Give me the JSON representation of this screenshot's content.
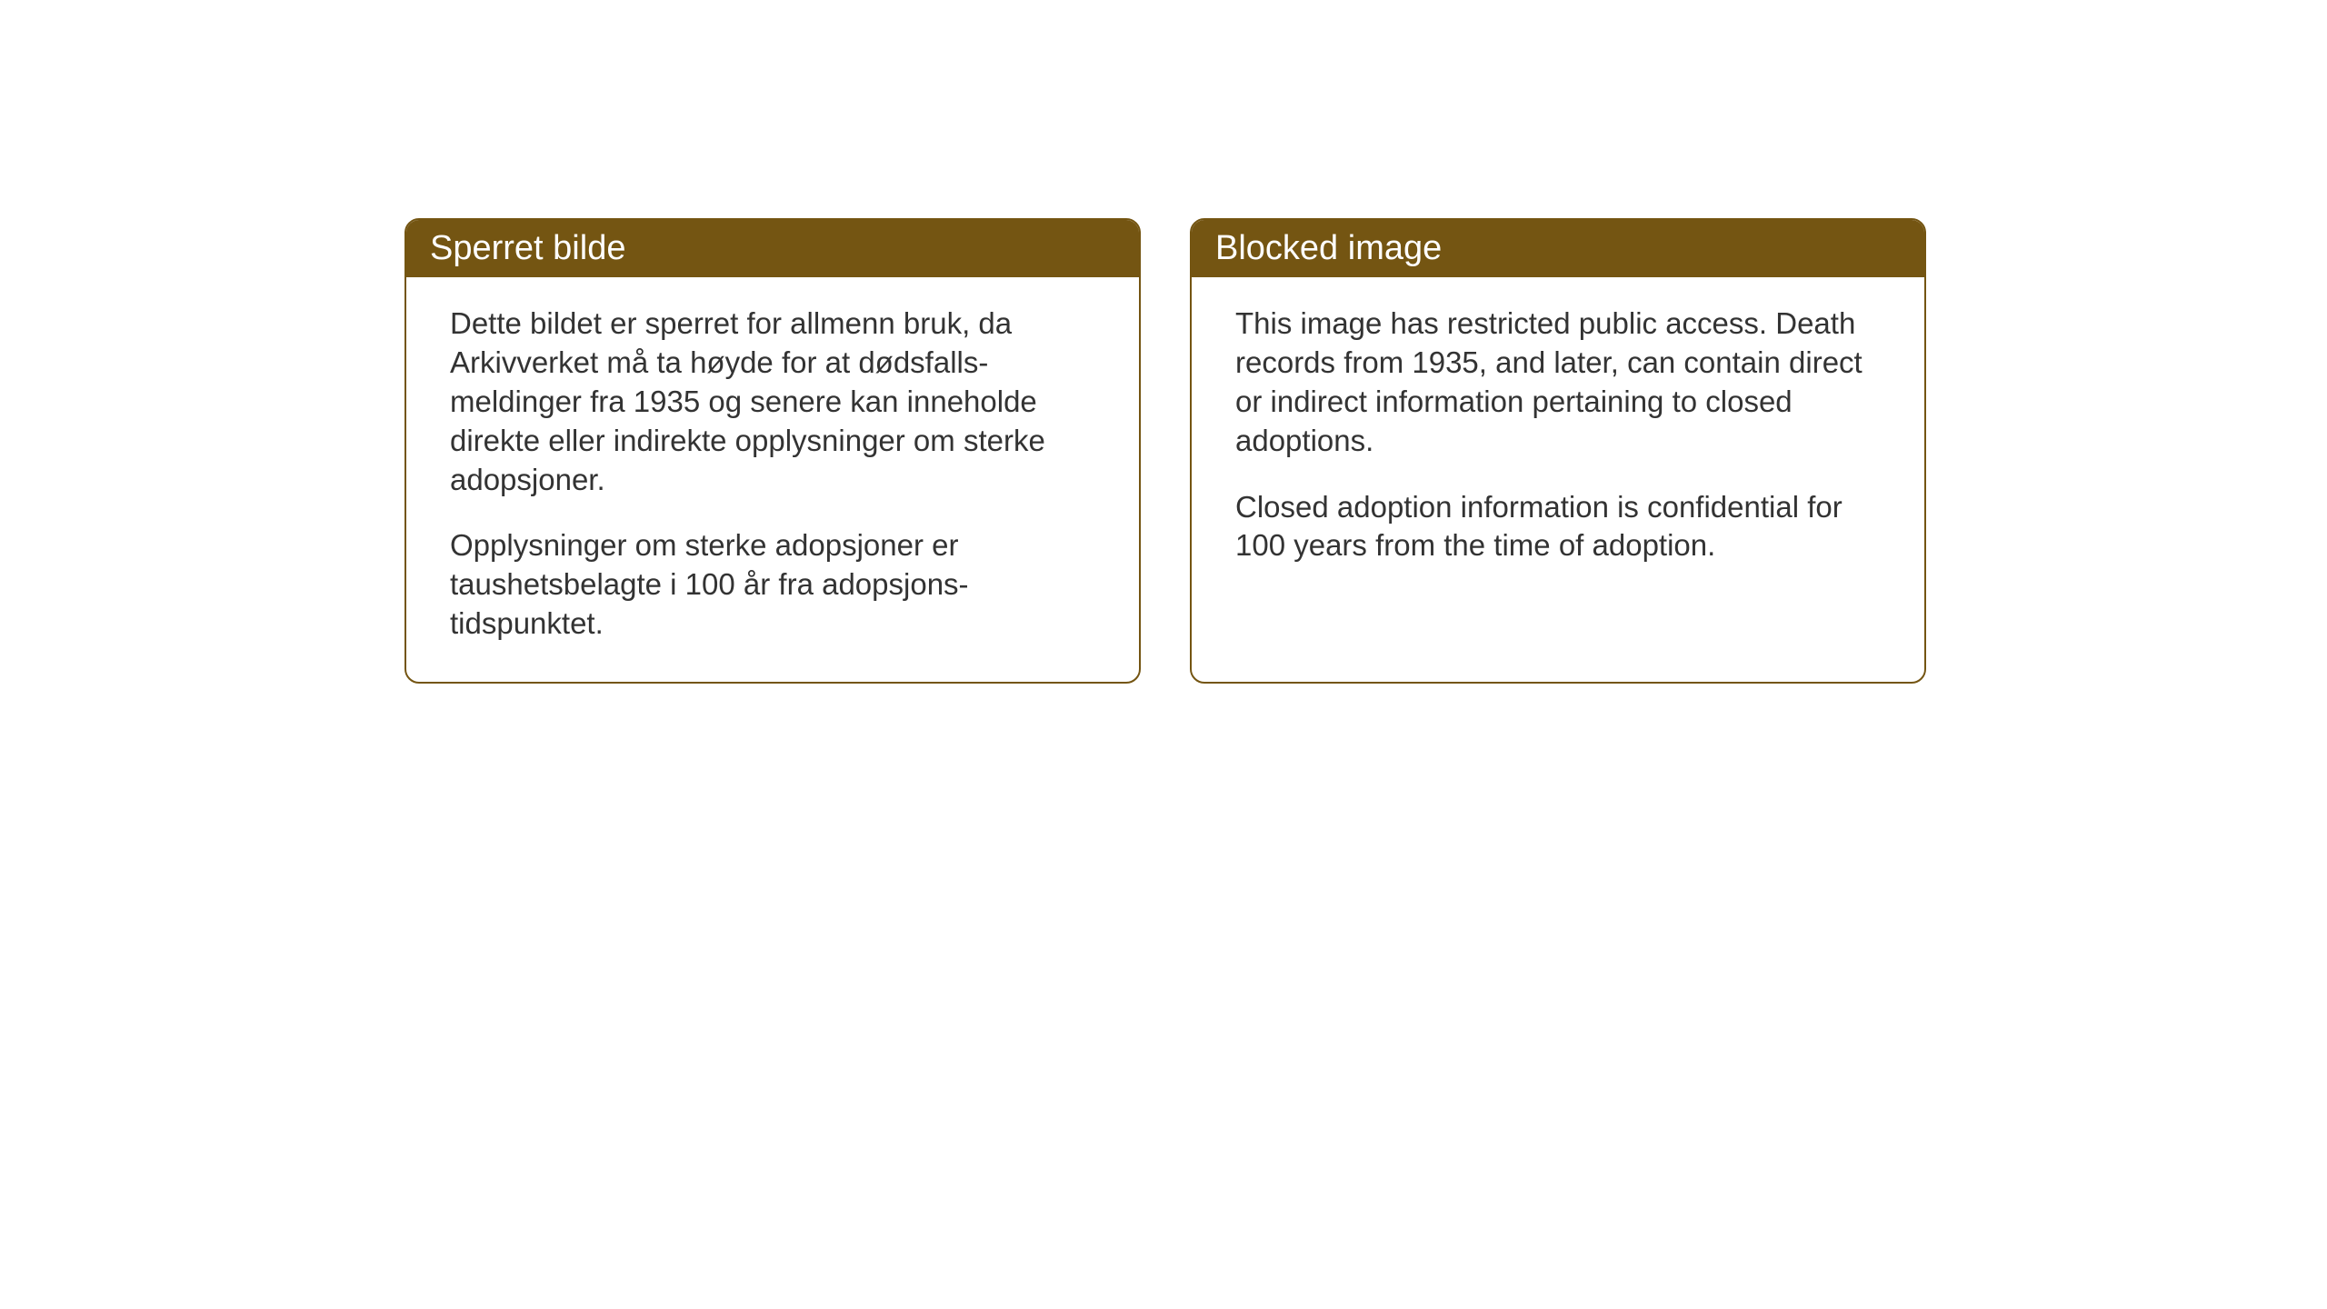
{
  "layout": {
    "background_color": "#ffffff",
    "card_border_color": "#745512",
    "card_header_bg": "#745512",
    "card_header_text_color": "#ffffff",
    "card_body_text_color": "#333333",
    "card_border_radius": 16,
    "header_fontsize": 38,
    "body_fontsize": 33
  },
  "cards": {
    "norwegian": {
      "title": "Sperret bilde",
      "paragraph1": "Dette bildet er sperret for allmenn bruk, da Arkivverket må ta høyde for at dødsfalls-meldinger fra 1935 og senere kan inneholde direkte eller indirekte opplysninger om sterke adopsjoner.",
      "paragraph2": "Opplysninger om sterke adopsjoner er taushetsbelagte i 100 år fra adopsjons-tidspunktet."
    },
    "english": {
      "title": "Blocked image",
      "paragraph1": "This image has restricted public access. Death records from 1935, and later, can contain direct or indirect information pertaining to closed adoptions.",
      "paragraph2": "Closed adoption information is confidential for 100 years from the time of adoption."
    }
  }
}
